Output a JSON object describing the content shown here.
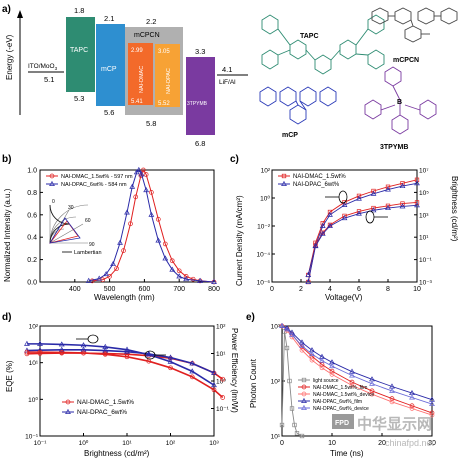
{
  "panels": {
    "a": {
      "letter": "a)",
      "ylabel": "Energy (-eV)",
      "ito": {
        "label": "ITO/MoO",
        "sub": "3",
        "value": "5.1"
      },
      "tapc": {
        "name": "TAPC",
        "top": "1.8",
        "bottom": "5.3"
      },
      "mcp": {
        "name": "mCP",
        "top": "2.1",
        "bottom": "5.6"
      },
      "mcpcn": {
        "name": "mCPCN",
        "top": "2.2",
        "bottom": "5.8"
      },
      "dmac": {
        "name": "NAI-DMAC",
        "top": "2.99",
        "bottom": "5.41"
      },
      "dpac": {
        "name": "NAI-DPAC",
        "top": "3.05",
        "bottom": "5.52"
      },
      "tpymb": {
        "name": "3TPYMB",
        "top": "3.3",
        "bottom": "6.8"
      },
      "lif": {
        "label": "LiF/Al",
        "value": "4.1"
      },
      "structures": [
        "TAPC",
        "mCPCN",
        "mCP",
        "3TPYMB"
      ]
    },
    "b": {
      "letter": "b)",
      "ylabel": "Normalized Intensity (a.u.)",
      "xlabel": "Wavelength (nm)",
      "lambertian": "Lambertian",
      "polar_ticks": [
        "0",
        "30",
        "60",
        "90"
      ]
    },
    "c": {
      "letter": "c)",
      "ylabel": "Current Density (mA/cm²)",
      "y2label": "Brightness (cd/m²)",
      "xlabel": "Voltage(V)"
    },
    "d": {
      "letter": "d)",
      "ylabel": "EQE (%)",
      "y2label": "Power Efficiency (lm/W)",
      "xlabel": "Brightness (cd/m²)"
    },
    "e": {
      "letter": "e)",
      "ylabel": "Photon Count",
      "xlabel": "Time (ns)"
    }
  },
  "watermark": {
    "logo": "FPD",
    "cn": "中华显示网",
    "url": "chinafpd.net"
  },
  "chart_data": [
    {
      "panel": "b",
      "type": "line",
      "xlim": [
        300,
        800
      ],
      "ylim": [
        0,
        1.0
      ],
      "xticks": [
        "400",
        "500",
        "600",
        "700",
        "800"
      ],
      "yticks": [
        "0.0",
        "0.2",
        "0.4",
        "0.6",
        "0.8",
        "1.0"
      ],
      "series": [
        {
          "name": "NAI-DMAC_1.5wt% - 597 nm",
          "color": "#e02020",
          "x": [
            450,
            480,
            500,
            520,
            540,
            560,
            575,
            590,
            597,
            605,
            620,
            640,
            660,
            680,
            700,
            720,
            740,
            760,
            800
          ],
          "y": [
            0.01,
            0.02,
            0.05,
            0.12,
            0.28,
            0.52,
            0.76,
            0.95,
            1.0,
            0.96,
            0.8,
            0.56,
            0.34,
            0.19,
            0.1,
            0.05,
            0.025,
            0.01,
            0.0
          ]
        },
        {
          "name": "NAI-DPAC_6wt% - 584 nm",
          "color": "#2a2aa8",
          "x": [
            440,
            470,
            490,
            510,
            530,
            550,
            565,
            578,
            584,
            592,
            605,
            620,
            640,
            660,
            680,
            700,
            720,
            760,
            800
          ],
          "y": [
            0.01,
            0.03,
            0.07,
            0.16,
            0.35,
            0.62,
            0.85,
            0.98,
            1.0,
            0.96,
            0.82,
            0.6,
            0.37,
            0.21,
            0.11,
            0.05,
            0.025,
            0.01,
            0.0
          ]
        }
      ]
    },
    {
      "panel": "c",
      "type": "line",
      "xlim": [
        0,
        10
      ],
      "ylim_log10": [
        -6,
        2
      ],
      "y2lim_log10": [
        -3,
        7
      ],
      "xticks": [
        "0",
        "2",
        "4",
        "6",
        "8",
        "10"
      ],
      "yticks": [
        "10²",
        "10⁰",
        "10⁻²",
        "10⁻⁴",
        "10⁻⁶"
      ],
      "y2ticks": [
        "10⁷",
        "10⁵",
        "10³",
        "10¹",
        "10⁻¹",
        "10⁻³"
      ],
      "series": [
        {
          "name": "NAI-DMAC_1.5wt%",
          "color": "#e02020",
          "axis": "left",
          "x": [
            2.5,
            3,
            3.5,
            4,
            5,
            6,
            7,
            8,
            9,
            10
          ],
          "log10y": [
            -5.5,
            -3.2,
            -1.8,
            -1.0,
            -0.3,
            0.15,
            0.5,
            0.8,
            1.05,
            1.3
          ]
        },
        {
          "name": "NAI-DPAC_6wt%",
          "color": "#2a2aa8",
          "axis": "left",
          "x": [
            2.5,
            3,
            3.5,
            4,
            5,
            6,
            7,
            8,
            9,
            10
          ],
          "log10y": [
            -5.5,
            -3.4,
            -2.0,
            -1.2,
            -0.5,
            -0.05,
            0.3,
            0.6,
            0.85,
            1.05
          ]
        },
        {
          "name": "NAI-DMAC_1.5wt%",
          "color": "#e02020",
          "axis": "right",
          "x": [
            2.5,
            3,
            3.5,
            4,
            5,
            6,
            7,
            8,
            9,
            10
          ],
          "log10y": [
            -3,
            0.3,
            1.4,
            2.1,
            2.9,
            3.3,
            3.6,
            3.8,
            4.0,
            4.1
          ]
        },
        {
          "name": "NAI-DPAC_6wt%",
          "color": "#2a2aa8",
          "axis": "right",
          "x": [
            2.5,
            3,
            3.5,
            4,
            5,
            6,
            7,
            8,
            9,
            10
          ],
          "log10y": [
            -3,
            0.2,
            1.3,
            2.0,
            2.7,
            3.1,
            3.4,
            3.6,
            3.75,
            3.85
          ]
        }
      ]
    },
    {
      "panel": "d",
      "type": "line",
      "xlim_log10": [
        -1,
        3
      ],
      "ylim_log10": [
        -1,
        2
      ],
      "y2lim_log10": [
        -2,
        2
      ],
      "xticks": [
        "10⁻¹",
        "10⁰",
        "10¹",
        "10²",
        "10³"
      ],
      "yticks": [
        "10²",
        "10¹",
        "10⁰",
        "10⁻¹"
      ],
      "y2ticks": [
        "10²",
        "10¹",
        "10⁰",
        "10⁻¹"
      ],
      "series": [
        {
          "name": "NAI-DMAC_1.5wt%",
          "color": "#e02020",
          "axis": "left",
          "log10x": [
            -1.3,
            -1,
            -0.5,
            0,
            0.5,
            1,
            1.5,
            2,
            2.5,
            3,
            3.2
          ],
          "log10y": [
            1.24,
            1.25,
            1.26,
            1.26,
            1.25,
            1.23,
            1.19,
            1.12,
            0.98,
            0.72,
            0.55
          ]
        },
        {
          "name": "NAI-DPAC_6wt%",
          "color": "#2a2aa8",
          "axis": "left",
          "log10x": [
            -1.3,
            -1,
            -0.5,
            0,
            0.5,
            1,
            1.5,
            2,
            2.5,
            3
          ],
          "log10y": [
            1.33,
            1.34,
            1.35,
            1.35,
            1.33,
            1.3,
            1.24,
            1.14,
            0.98,
            0.72
          ]
        },
        {
          "name": "NAI-DMAC_1.5wt%",
          "color": "#e02020",
          "axis": "right",
          "log10x": [
            -1.3,
            -1,
            -0.5,
            0,
            0.5,
            1,
            1.5,
            2,
            2.5,
            3,
            3.2
          ],
          "log10y": [
            1.05,
            1.05,
            1.04,
            1.02,
            0.97,
            0.88,
            0.72,
            0.48,
            0.15,
            -0.32,
            -0.6
          ]
        },
        {
          "name": "NAI-DPAC_6wt%",
          "color": "#2a2aa8",
          "axis": "right",
          "log10x": [
            -1.3,
            -1,
            -0.5,
            0,
            0.5,
            1,
            1.5,
            2,
            2.5,
            3
          ],
          "log10y": [
            1.35,
            1.35,
            1.33,
            1.3,
            1.24,
            1.14,
            0.96,
            0.7,
            0.35,
            -0.15
          ]
        }
      ]
    },
    {
      "panel": "e",
      "type": "line",
      "xlim": [
        0,
        30
      ],
      "ylim_log10": [
        1,
        3
      ],
      "xticks": [
        "0",
        "10",
        "20",
        "30"
      ],
      "yticks": [
        "10³",
        "10²",
        "10¹"
      ],
      "series": [
        {
          "name": "light source",
          "color": "#888888",
          "x": [
            0,
            0.5,
            1,
            1.5,
            2,
            2.5,
            3,
            4
          ],
          "log10y": [
            1.2,
            2.9,
            2.6,
            2.0,
            1.5,
            1.2,
            1.05,
            1.0
          ]
        },
        {
          "name": "NAI-DMAC_1.5wt%_film",
          "color": "#e02020",
          "x": [
            0,
            1,
            2,
            4,
            6,
            8,
            10,
            14,
            18,
            22,
            26,
            30
          ],
          "log10y": [
            3.0,
            2.95,
            2.85,
            2.62,
            2.45,
            2.3,
            2.18,
            1.98,
            1.82,
            1.68,
            1.55,
            1.42
          ]
        },
        {
          "name": "NAI-DMAC_1.5wt%_device",
          "color": "#ff7070",
          "x": [
            0,
            1,
            2,
            4,
            6,
            8,
            10,
            14,
            18,
            22,
            26,
            30
          ],
          "log10y": [
            3.0,
            2.92,
            2.8,
            2.56,
            2.38,
            2.24,
            2.12,
            1.92,
            1.76,
            1.62,
            1.5,
            1.38
          ]
        },
        {
          "name": "NAI-DPAC_6wt%_film",
          "color": "#2a2aa8",
          "x": [
            0,
            1,
            2,
            4,
            6,
            8,
            10,
            14,
            18,
            22,
            26,
            30
          ],
          "log10y": [
            3.0,
            2.96,
            2.88,
            2.7,
            2.56,
            2.44,
            2.34,
            2.17,
            2.03,
            1.9,
            1.78,
            1.66
          ]
        },
        {
          "name": "NAI-DPAC_6wt%_device",
          "color": "#6a6ad8",
          "x": [
            0,
            1,
            2,
            4,
            6,
            8,
            10,
            14,
            18,
            22,
            26,
            30
          ],
          "log10y": [
            3.0,
            2.94,
            2.84,
            2.64,
            2.49,
            2.37,
            2.27,
            2.1,
            1.95,
            1.82,
            1.7,
            1.58
          ]
        }
      ]
    }
  ]
}
